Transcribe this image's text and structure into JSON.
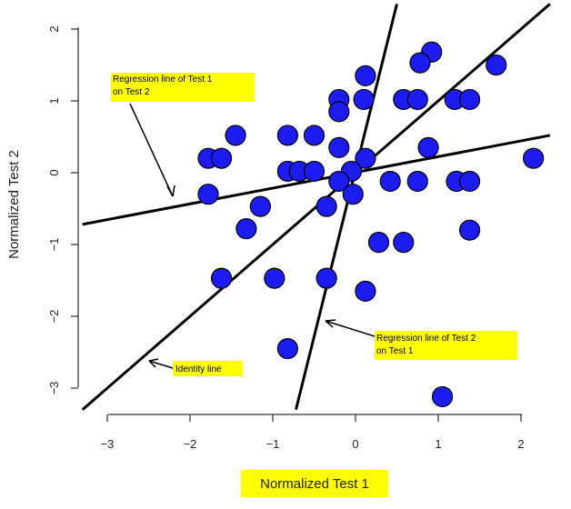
{
  "chart_data": {
    "type": "scatter",
    "title": "",
    "xlabel": "Normalized Test 1",
    "ylabel": "Normalized Test 2",
    "xlim": [
      -3.3,
      2.35
    ],
    "ylim": [
      -3.3,
      2.35
    ],
    "xticks": [
      -3,
      -2,
      -1,
      0,
      1,
      2
    ],
    "yticks": [
      -3,
      -2,
      -1,
      0,
      1,
      2
    ],
    "xtick_labels": [
      "−3",
      "−2",
      "−1",
      "0",
      "1",
      "2"
    ],
    "ytick_labels": [
      "−3",
      "−2",
      "−1",
      "0",
      "1",
      "2"
    ],
    "grid": false,
    "colors": {
      "point_fill": "#1c1cf0",
      "point_edge": "#000000",
      "line": "#000000",
      "label_bg": "#ffff00",
      "xlabel_bg": "#ffff00"
    },
    "points": [
      {
        "x": 0.92,
        "y": 1.68
      },
      {
        "x": 0.78,
        "y": 1.53
      },
      {
        "x": 1.7,
        "y": 1.5
      },
      {
        "x": 0.12,
        "y": 1.35
      },
      {
        "x": -0.2,
        "y": 1.02
      },
      {
        "x": 0.1,
        "y": 1.02
      },
      {
        "x": 0.58,
        "y": 1.02
      },
      {
        "x": 0.75,
        "y": 1.02
      },
      {
        "x": 1.2,
        "y": 1.02
      },
      {
        "x": 1.38,
        "y": 1.02
      },
      {
        "x": -0.2,
        "y": 0.85
      },
      {
        "x": -1.45,
        "y": 0.52
      },
      {
        "x": -0.82,
        "y": 0.52
      },
      {
        "x": -0.5,
        "y": 0.52
      },
      {
        "x": -0.2,
        "y": 0.35
      },
      {
        "x": 0.88,
        "y": 0.35
      },
      {
        "x": -1.78,
        "y": 0.2
      },
      {
        "x": -1.62,
        "y": 0.2
      },
      {
        "x": 0.12,
        "y": 0.2
      },
      {
        "x": 2.15,
        "y": 0.2
      },
      {
        "x": -0.82,
        "y": 0.02
      },
      {
        "x": -0.68,
        "y": 0.02
      },
      {
        "x": -0.5,
        "y": 0.02
      },
      {
        "x": -0.05,
        "y": 0.02
      },
      {
        "x": -0.2,
        "y": -0.12
      },
      {
        "x": 0.42,
        "y": -0.12
      },
      {
        "x": 0.75,
        "y": -0.12
      },
      {
        "x": 1.22,
        "y": -0.12
      },
      {
        "x": 1.38,
        "y": -0.12
      },
      {
        "x": -1.78,
        "y": -0.3
      },
      {
        "x": -0.03,
        "y": -0.3
      },
      {
        "x": -1.15,
        "y": -0.47
      },
      {
        "x": -0.35,
        "y": -0.47
      },
      {
        "x": -1.32,
        "y": -0.78
      },
      {
        "x": 1.38,
        "y": -0.8
      },
      {
        "x": 0.28,
        "y": -0.97
      },
      {
        "x": 0.58,
        "y": -0.97
      },
      {
        "x": -1.62,
        "y": -1.47
      },
      {
        "x": -0.98,
        "y": -1.47
      },
      {
        "x": -0.35,
        "y": -1.47
      },
      {
        "x": 0.12,
        "y": -1.65
      },
      {
        "x": -0.82,
        "y": -2.45
      },
      {
        "x": 1.05,
        "y": -3.12
      }
    ],
    "lines": [
      {
        "label": "Regression line of Test 1 on Test 2",
        "x": [
          -3.3,
          2.35
        ],
        "y": [
          -0.72,
          0.52
        ]
      },
      {
        "label": "Regression line of Test 2 on Test 1",
        "x": [
          -0.72,
          0.5
        ],
        "y": [
          -3.3,
          2.35
        ]
      },
      {
        "label": "Identity line",
        "x": [
          -3.3,
          2.35
        ],
        "y": [
          -3.3,
          2.35
        ]
      }
    ],
    "annotations": [
      {
        "text_lines": [
          "Regression line of Test 1",
          "on Test 2"
        ],
        "text": "Regression line of Test 1 on Test 2"
      },
      {
        "text_lines": [
          "Regression line of Test 2",
          "on Test 1"
        ],
        "text": "Regression line of Test 2 on Test 1"
      },
      {
        "text_lines": [
          "Identity line"
        ],
        "text": "Identity line"
      }
    ]
  }
}
